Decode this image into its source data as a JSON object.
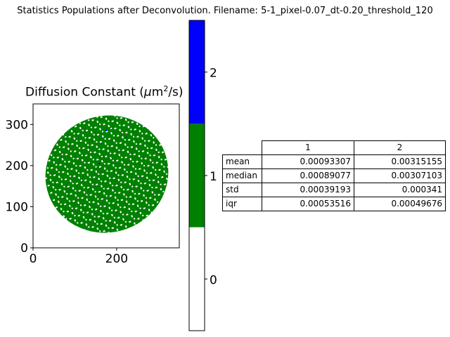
{
  "figure_title": "Statistics Populations after Deconvolution. Filename: 5-1_pixel-0.07_dt-0.20_threshold_120",
  "colors": {
    "population_1": "#008000",
    "population_2": "#0000ff",
    "population_0": "#ffffff"
  },
  "chart_data": [
    {
      "type": "heatmap",
      "title": "Diffusion Constant (μm²/s)",
      "xlim": [
        0,
        350
      ],
      "ylim": [
        0,
        350
      ],
      "x_ticks": [
        "0",
        "200"
      ],
      "y_ticks": [
        "0",
        "100",
        "200",
        "300"
      ],
      "description_colors": "discrete populations 0 (white), 1 (green), 2 (blue)"
    },
    {
      "type": "bar",
      "title": "",
      "colorbar_ticks": [
        "0",
        "1",
        "2"
      ],
      "categories": [
        "0",
        "1",
        "2"
      ],
      "colors": [
        "#ffffff",
        "#008000",
        "#0000ff"
      ]
    },
    {
      "type": "table",
      "columns": [
        "1",
        "2"
      ],
      "rows": [
        {
          "label": "mean",
          "values": [
            "0.00093307",
            "0.00315155"
          ]
        },
        {
          "label": "median",
          "values": [
            "0.00089077",
            "0.00307103"
          ]
        },
        {
          "label": "std",
          "values": [
            "0.00039193",
            "0.000341"
          ]
        },
        {
          "label": "iqr",
          "values": [
            "0.00053516",
            "0.00049676"
          ]
        }
      ]
    }
  ]
}
